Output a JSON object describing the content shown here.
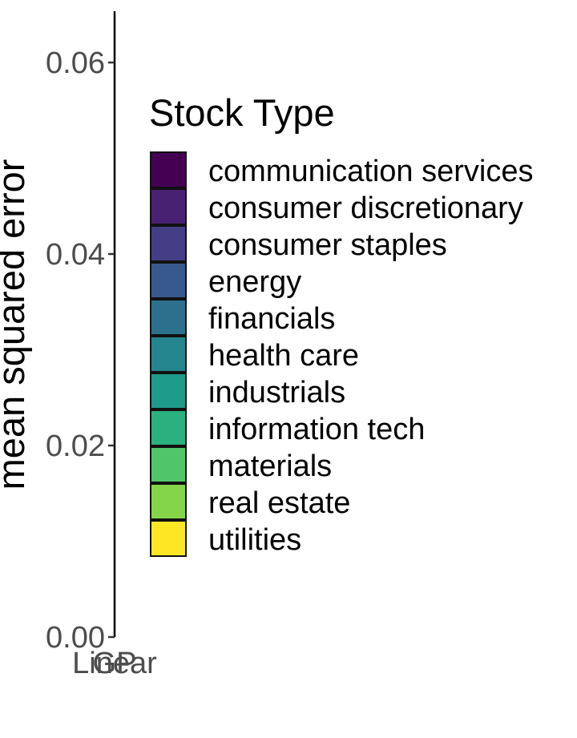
{
  "chart_data": {
    "type": "bar",
    "title": "",
    "xlabel": "",
    "ylabel": "mean squared error",
    "ylim": [
      0,
      0.065
    ],
    "y_ticks": [
      0,
      0.02,
      0.04,
      0.06
    ],
    "y_tick_labels": [
      "0.00",
      "0.02",
      "0.04",
      "0.06"
    ],
    "categories": [
      "Linear",
      "GP"
    ],
    "grid": false,
    "legend_position": "right",
    "legend": {
      "title": "Stock Type",
      "entries": [
        {
          "label": "communication services",
          "color": "#440154"
        },
        {
          "label": "consumer discretionary",
          "color": "#482173"
        },
        {
          "label": "consumer staples",
          "color": "#433E85"
        },
        {
          "label": "energy",
          "color": "#38598C"
        },
        {
          "label": "financials",
          "color": "#2D708E"
        },
        {
          "label": "health care",
          "color": "#25858E"
        },
        {
          "label": "industrials",
          "color": "#1E9B8A"
        },
        {
          "label": "information tech",
          "color": "#2BB07F"
        },
        {
          "label": "materials",
          "color": "#51C56A"
        },
        {
          "label": "real estate",
          "color": "#85D54A"
        },
        {
          "label": "utilities",
          "color": "#FDE725"
        }
      ]
    },
    "series": []
  }
}
